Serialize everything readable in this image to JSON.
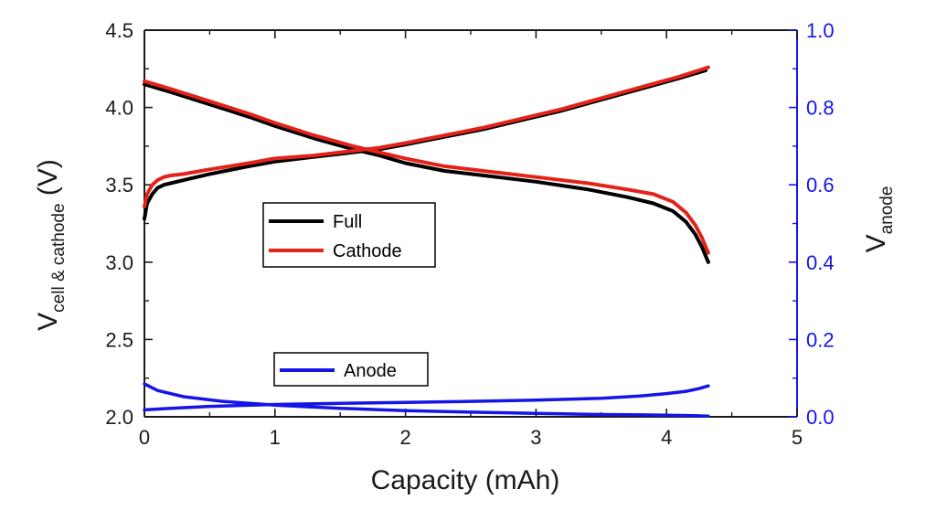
{
  "chart_data": {
    "type": "line",
    "title": "",
    "xlabel": "Capacity (mAh)",
    "ylabel_left": {
      "main": "V",
      "sub": "cell & cathode",
      "unit": " (V)"
    },
    "ylabel_right": {
      "main": "V",
      "sub": "anode"
    },
    "xlim": [
      0,
      5
    ],
    "ylim_left": [
      2.0,
      4.5
    ],
    "ylim_right": [
      0.0,
      1.0
    ],
    "x_ticks": [
      "0",
      "1",
      "2",
      "3",
      "4",
      "5"
    ],
    "y_left_ticks": [
      "2.0",
      "2.5",
      "3.0",
      "3.5",
      "4.0",
      "4.5"
    ],
    "y_right_ticks": [
      "0.0",
      "0.2",
      "0.4",
      "0.6",
      "0.8",
      "1.0"
    ],
    "grid": false,
    "colors": {
      "full": "#000000",
      "cathode": "#e32219",
      "anode": "#1515e6",
      "axis_left": "#1a1a1a",
      "axis_right": "#1515e6"
    },
    "legend": [
      {
        "name": "Full",
        "color": "#000000"
      },
      {
        "name": "Cathode",
        "color": "#e32219"
      },
      {
        "name": "Anode",
        "color": "#1515e6"
      }
    ],
    "series": [
      {
        "name": "Full",
        "axis": "left",
        "color": "#000000",
        "kind": "charge",
        "x": [
          0,
          0.02,
          0.06,
          0.1,
          0.15,
          0.2,
          0.3,
          0.5,
          0.8,
          1.0,
          1.3,
          1.6,
          1.8,
          2.0,
          2.3,
          2.6,
          2.9,
          3.2,
          3.5,
          3.8,
          4.1,
          4.3
        ],
        "y": [
          3.28,
          3.38,
          3.44,
          3.48,
          3.5,
          3.51,
          3.53,
          3.57,
          3.62,
          3.65,
          3.68,
          3.71,
          3.73,
          3.76,
          3.81,
          3.86,
          3.92,
          3.98,
          4.05,
          4.12,
          4.19,
          4.24
        ]
      },
      {
        "name": "Full",
        "axis": "left",
        "color": "#000000",
        "kind": "discharge",
        "x": [
          0,
          0.2,
          0.5,
          0.8,
          1.0,
          1.3,
          1.6,
          1.8,
          2.0,
          2.3,
          2.6,
          3.0,
          3.4,
          3.7,
          3.9,
          4.05,
          4.15,
          4.22,
          4.27,
          4.3,
          4.32
        ],
        "y": [
          4.15,
          4.1,
          4.02,
          3.94,
          3.88,
          3.8,
          3.73,
          3.69,
          3.64,
          3.59,
          3.56,
          3.52,
          3.47,
          3.42,
          3.38,
          3.33,
          3.26,
          3.18,
          3.1,
          3.04,
          3.0
        ]
      },
      {
        "name": "Cathode",
        "axis": "left",
        "color": "#e32219",
        "kind": "charge",
        "x": [
          0,
          0.02,
          0.06,
          0.1,
          0.15,
          0.2,
          0.3,
          0.5,
          0.8,
          1.0,
          1.3,
          1.6,
          1.8,
          2.0,
          2.3,
          2.6,
          2.9,
          3.2,
          3.5,
          3.8,
          4.1,
          4.32
        ],
        "y": [
          3.36,
          3.44,
          3.5,
          3.53,
          3.55,
          3.56,
          3.57,
          3.6,
          3.64,
          3.67,
          3.69,
          3.72,
          3.74,
          3.77,
          3.82,
          3.87,
          3.93,
          3.99,
          4.06,
          4.13,
          4.2,
          4.26
        ]
      },
      {
        "name": "Cathode",
        "axis": "left",
        "color": "#e32219",
        "kind": "discharge",
        "x": [
          0,
          0.2,
          0.5,
          0.8,
          1.0,
          1.3,
          1.6,
          1.8,
          2.0,
          2.3,
          2.6,
          3.0,
          3.4,
          3.7,
          3.9,
          4.05,
          4.15,
          4.22,
          4.27,
          4.3,
          4.32
        ],
        "y": [
          4.17,
          4.12,
          4.04,
          3.96,
          3.9,
          3.82,
          3.75,
          3.71,
          3.67,
          3.62,
          3.59,
          3.55,
          3.51,
          3.47,
          3.44,
          3.39,
          3.32,
          3.24,
          3.16,
          3.1,
          3.06
        ]
      },
      {
        "name": "Anode",
        "axis": "right",
        "color": "#1515e6",
        "kind": "charge",
        "x": [
          0,
          0.1,
          0.3,
          0.6,
          1.0,
          1.5,
          2.0,
          2.5,
          3.0,
          3.5,
          3.8,
          4.0,
          4.2,
          4.32
        ],
        "y": [
          0.085,
          0.068,
          0.052,
          0.04,
          0.03,
          0.022,
          0.016,
          0.012,
          0.009,
          0.006,
          0.005,
          0.004,
          0.003,
          0.002
        ]
      },
      {
        "name": "Anode",
        "axis": "right",
        "color": "#1515e6",
        "kind": "discharge",
        "x": [
          0,
          0.2,
          0.5,
          1.0,
          1.5,
          2.0,
          2.5,
          3.0,
          3.5,
          3.8,
          4.0,
          4.15,
          4.25,
          4.32
        ],
        "y": [
          0.018,
          0.022,
          0.027,
          0.032,
          0.035,
          0.037,
          0.04,
          0.043,
          0.048,
          0.054,
          0.06,
          0.066,
          0.073,
          0.08
        ]
      }
    ]
  }
}
